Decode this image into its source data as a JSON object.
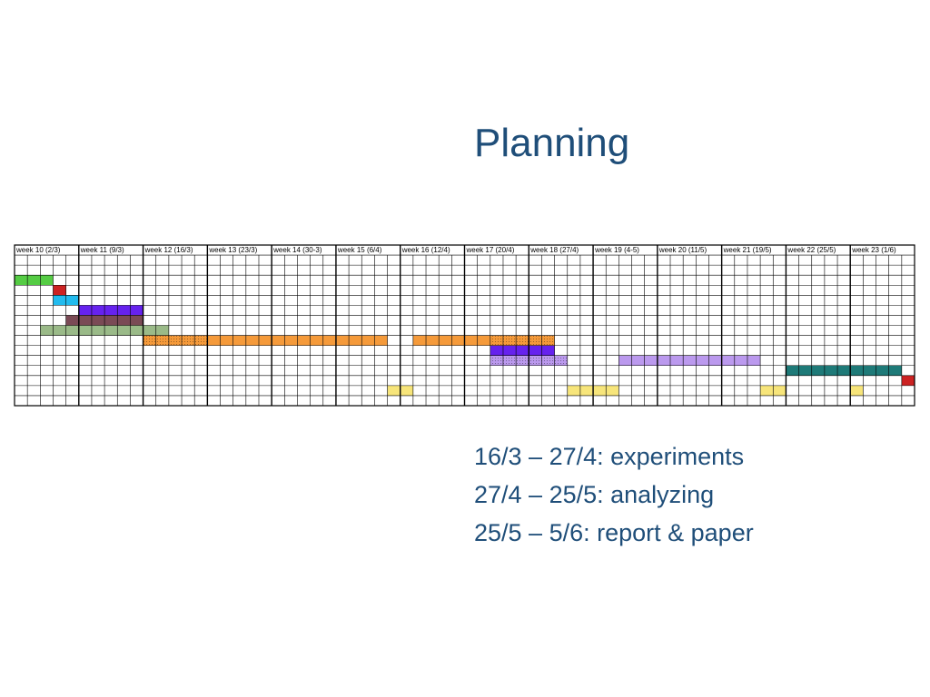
{
  "slide": {
    "title": "Planning",
    "notes": [
      "16/3 – 27/4: experiments",
      "27/4 – 25/5: analyzing",
      "25/5 – 5/6: report & paper"
    ]
  },
  "gantt": {
    "weeks": [
      "week 10 (2/3)",
      "week 11 (9/3)",
      "week 12 (16/3)",
      "week 13 (23/3)",
      "week 14 (30-3)",
      "week 15 (6/4)",
      "week 16 (12/4)",
      "week 17 (20/4)",
      "week 18 (27/4)",
      "week 19 (4-5)",
      "week 20 (11/5)",
      "week 21 (19/5)",
      "week 22 (25/5)",
      "week 23 (1/6)"
    ],
    "days_per_week": 5,
    "task_rows": 15,
    "bars": [
      {
        "row": 3,
        "start": 0,
        "span": 3,
        "color": "#55cc44",
        "pattern": false
      },
      {
        "row": 4,
        "start": 3,
        "span": 1,
        "color": "#cc2222",
        "pattern": false
      },
      {
        "row": 5,
        "start": 3,
        "span": 2,
        "color": "#22bbee",
        "pattern": false
      },
      {
        "row": 6,
        "start": 5,
        "span": 5,
        "color": "#6622ee",
        "pattern": false
      },
      {
        "row": 7,
        "start": 4,
        "span": 6,
        "color": "#7a4a55",
        "pattern": false
      },
      {
        "row": 8,
        "start": 2,
        "span": 10,
        "color": "#9aba88",
        "pattern": false
      },
      {
        "row": 9,
        "start": 10,
        "span": 5,
        "color": "#f59a3a",
        "pattern": true
      },
      {
        "row": 9,
        "start": 15,
        "span": 14,
        "color": "#f59a3a",
        "pattern": false
      },
      {
        "row": 9,
        "start": 31,
        "span": 6,
        "color": "#f59a3a",
        "pattern": false
      },
      {
        "row": 9,
        "start": 37,
        "span": 5,
        "color": "#f59a3a",
        "pattern": true
      },
      {
        "row": 10,
        "start": 37,
        "span": 5,
        "color": "#6622ee",
        "pattern": false
      },
      {
        "row": 11,
        "start": 37,
        "span": 6,
        "color": "#bb99ee",
        "pattern": true
      },
      {
        "row": 11,
        "start": 47,
        "span": 11,
        "color": "#bb99ee",
        "pattern": false
      },
      {
        "row": 12,
        "start": 60,
        "span": 9,
        "color": "#1e7a78",
        "pattern": false
      },
      {
        "row": 13,
        "start": 69,
        "span": 1,
        "color": "#cc2222",
        "pattern": false
      },
      {
        "row": 14,
        "start": 29,
        "span": 2,
        "color": "#f7e57a",
        "pattern": false
      },
      {
        "row": 14,
        "start": 43,
        "span": 4,
        "color": "#f7e57a",
        "pattern": false
      },
      {
        "row": 14,
        "start": 58,
        "span": 2,
        "color": "#f7e57a",
        "pattern": false
      },
      {
        "row": 14,
        "start": 65,
        "span": 1,
        "color": "#f7e57a",
        "pattern": false
      }
    ]
  }
}
